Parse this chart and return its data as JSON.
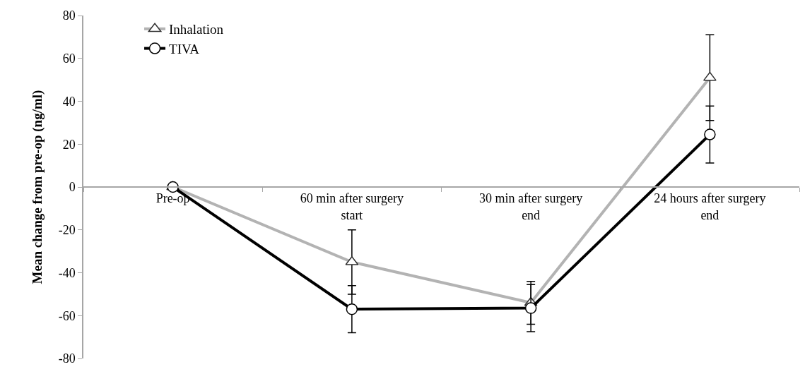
{
  "chart_data": {
    "type": "line",
    "ylabel": "Mean change from pre-op (ng/ml)",
    "categories": [
      "Pre-op",
      "60 min after surgery start",
      "30 min after surgery end",
      "24 hours after surgery end"
    ],
    "series": [
      {
        "name": "Inhalation",
        "color": "#b3b3b3",
        "marker": "triangle",
        "values": [
          0,
          -35,
          -54,
          51
        ],
        "errors": [
          null,
          15,
          10,
          20
        ]
      },
      {
        "name": "TIVA",
        "color": "#000000",
        "marker": "circle",
        "values": [
          0,
          -57,
          -56.5,
          24.5
        ],
        "errors": [
          null,
          11,
          11,
          13.3
        ]
      }
    ],
    "ylim": [
      -80,
      80
    ],
    "yticks": [
      -80,
      -60,
      -40,
      -20,
      0,
      20,
      40,
      60,
      80
    ],
    "legend": "top left"
  }
}
